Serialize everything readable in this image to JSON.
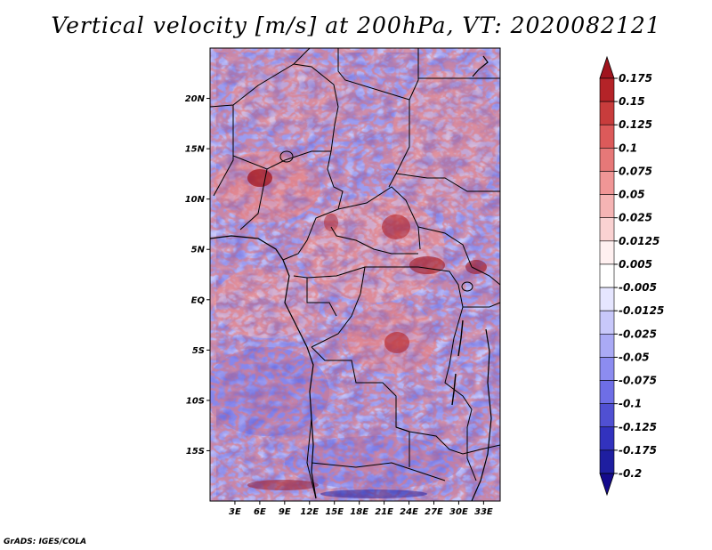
{
  "title": "Vertical velocity [m/s] at 200hPa, VT: 2020082121",
  "credit": "GrADS: IGES/COLA",
  "map": {
    "lon_range": [
      0,
      35
    ],
    "lat_range": [
      -20,
      25
    ],
    "lat_ticks": [
      {
        "value": 20,
        "label": "20N"
      },
      {
        "value": 15,
        "label": "15N"
      },
      {
        "value": 10,
        "label": "10N"
      },
      {
        "value": 5,
        "label": "5N"
      },
      {
        "value": 0,
        "label": "EQ"
      },
      {
        "value": -5,
        "label": "5S"
      },
      {
        "value": -10,
        "label": "10S"
      },
      {
        "value": -15,
        "label": "15S"
      }
    ],
    "lon_ticks": [
      {
        "value": 3,
        "label": "3E"
      },
      {
        "value": 6,
        "label": "6E"
      },
      {
        "value": 9,
        "label": "9E"
      },
      {
        "value": 12,
        "label": "12E"
      },
      {
        "value": 15,
        "label": "15E"
      },
      {
        "value": 18,
        "label": "18E"
      },
      {
        "value": 21,
        "label": "21E"
      },
      {
        "value": 24,
        "label": "24E"
      },
      {
        "value": 27,
        "label": "27E"
      },
      {
        "value": 30,
        "label": "30E"
      },
      {
        "value": 33,
        "label": "33E"
      }
    ]
  },
  "colorbar": {
    "levels": [
      "0.175",
      "0.15",
      "0.125",
      "0.1",
      "0.075",
      "0.05",
      "0.025",
      "0.0125",
      "0.005",
      "-0.005",
      "-0.0125",
      "-0.025",
      "-0.05",
      "-0.075",
      "-0.1",
      "-0.125",
      "-0.175",
      "-0.2"
    ],
    "colors": [
      "#a0141e",
      "#b42328",
      "#c83c3c",
      "#dc5a5a",
      "#e67878",
      "#f09696",
      "#f5b4b4",
      "#fad2d2",
      "#fff0f0",
      "#ffffff",
      "#e6e6ff",
      "#c8c8fa",
      "#aaaaf5",
      "#8c8cf0",
      "#6e6ee6",
      "#5050d2",
      "#3232be",
      "#1e1ea0",
      "#140a8c"
    ]
  }
}
